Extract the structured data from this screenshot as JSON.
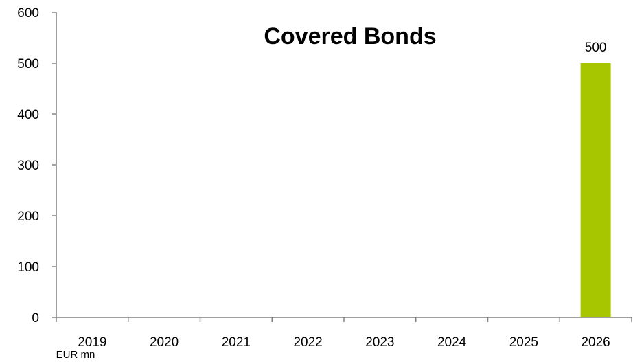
{
  "chart_data": {
    "type": "bar",
    "title": "Covered Bonds",
    "unit_label": "EUR mn",
    "categories": [
      "2019",
      "2020",
      "2021",
      "2022",
      "2023",
      "2024",
      "2025",
      "2026"
    ],
    "values": [
      0,
      0,
      0,
      0,
      0,
      0,
      0,
      500
    ],
    "data_labels": [
      "",
      "",
      "",
      "",
      "",
      "",
      "",
      "500"
    ],
    "ylim": [
      0,
      600
    ],
    "yticks": [
      "0",
      "100",
      "200",
      "300",
      "400",
      "500",
      "600"
    ],
    "grid": false,
    "legend": "none",
    "bar_color": "#a8c600"
  }
}
